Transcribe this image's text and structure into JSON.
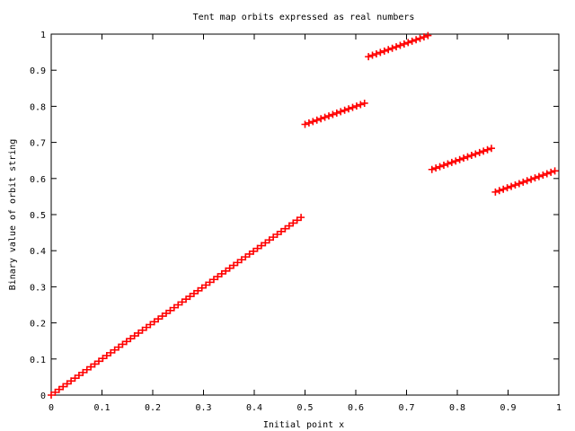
{
  "chart_data": {
    "type": "scatter",
    "title": "Tent map orbits expressed as real numbers",
    "xlabel": "Initial point x",
    "ylabel": "Binary value of orbit string",
    "xlim": [
      0,
      1
    ],
    "ylim": [
      0,
      1
    ],
    "xticks": [
      0,
      0.1,
      0.2,
      0.3,
      0.4,
      0.5,
      0.6,
      0.7,
      0.8,
      0.9,
      1
    ],
    "yticks": [
      0,
      0.1,
      0.2,
      0.3,
      0.4,
      0.5,
      0.6,
      0.7,
      0.8,
      0.9,
      1
    ],
    "xtick_labels": [
      "0",
      "0.1",
      "0.2",
      "0.3",
      "0.4",
      "0.5",
      "0.6",
      "0.7",
      "0.8",
      "0.9",
      "1"
    ],
    "ytick_labels": [
      "0",
      "0.1",
      "0.2",
      "0.3",
      "0.4",
      "0.5",
      "0.6",
      "0.7",
      "0.8",
      "0.9",
      "1"
    ],
    "grid": false,
    "legend": "none",
    "marker": "plus",
    "marker_color": "#ff0000",
    "series": [
      {
        "points": [
          [
            0.0,
            0.0
          ],
          [
            0.0078,
            0.0078
          ],
          [
            0.0156,
            0.0156
          ],
          [
            0.0234,
            0.0234
          ],
          [
            0.0313,
            0.0313
          ],
          [
            0.0391,
            0.0391
          ],
          [
            0.0469,
            0.0469
          ],
          [
            0.0547,
            0.0547
          ],
          [
            0.0625,
            0.0625
          ],
          [
            0.0703,
            0.0703
          ],
          [
            0.0781,
            0.0781
          ],
          [
            0.0859,
            0.0859
          ],
          [
            0.0938,
            0.0938
          ],
          [
            0.1016,
            0.1016
          ],
          [
            0.1094,
            0.1094
          ],
          [
            0.1172,
            0.1172
          ],
          [
            0.125,
            0.125
          ],
          [
            0.1328,
            0.1328
          ],
          [
            0.1406,
            0.1406
          ],
          [
            0.1484,
            0.1484
          ],
          [
            0.1563,
            0.1563
          ],
          [
            0.1641,
            0.1641
          ],
          [
            0.1719,
            0.1719
          ],
          [
            0.1797,
            0.1797
          ],
          [
            0.1875,
            0.1875
          ],
          [
            0.1953,
            0.1953
          ],
          [
            0.2031,
            0.2031
          ],
          [
            0.2109,
            0.2109
          ],
          [
            0.2188,
            0.2188
          ],
          [
            0.2266,
            0.2266
          ],
          [
            0.2344,
            0.2344
          ],
          [
            0.2422,
            0.2422
          ],
          [
            0.25,
            0.25
          ],
          [
            0.2578,
            0.2578
          ],
          [
            0.2656,
            0.2656
          ],
          [
            0.2734,
            0.2734
          ],
          [
            0.2813,
            0.2813
          ],
          [
            0.2891,
            0.2891
          ],
          [
            0.2969,
            0.2969
          ],
          [
            0.3047,
            0.3047
          ],
          [
            0.3125,
            0.3125
          ],
          [
            0.3203,
            0.3203
          ],
          [
            0.3281,
            0.3281
          ],
          [
            0.3359,
            0.3359
          ],
          [
            0.3438,
            0.3438
          ],
          [
            0.3516,
            0.3516
          ],
          [
            0.3594,
            0.3594
          ],
          [
            0.3672,
            0.3672
          ],
          [
            0.375,
            0.375
          ],
          [
            0.3828,
            0.3828
          ],
          [
            0.3906,
            0.3906
          ],
          [
            0.3984,
            0.3984
          ],
          [
            0.4063,
            0.4063
          ],
          [
            0.4141,
            0.4141
          ],
          [
            0.4219,
            0.4219
          ],
          [
            0.4297,
            0.4297
          ],
          [
            0.4375,
            0.4375
          ],
          [
            0.4453,
            0.4453
          ],
          [
            0.4531,
            0.4531
          ],
          [
            0.4609,
            0.4609
          ],
          [
            0.4688,
            0.4688
          ],
          [
            0.4766,
            0.4766
          ],
          [
            0.4844,
            0.4844
          ],
          [
            0.4922,
            0.4922
          ],
          [
            0.5,
            0.75
          ],
          [
            0.5078,
            0.7539
          ],
          [
            0.5156,
            0.7578
          ],
          [
            0.5234,
            0.7617
          ],
          [
            0.5313,
            0.7656
          ],
          [
            0.5391,
            0.7695
          ],
          [
            0.5469,
            0.7734
          ],
          [
            0.5547,
            0.7773
          ],
          [
            0.5625,
            0.7813
          ],
          [
            0.5703,
            0.7852
          ],
          [
            0.5781,
            0.7891
          ],
          [
            0.5859,
            0.793
          ],
          [
            0.5938,
            0.7969
          ],
          [
            0.6016,
            0.8008
          ],
          [
            0.6094,
            0.8047
          ],
          [
            0.6172,
            0.8086
          ],
          [
            0.625,
            0.9375
          ],
          [
            0.6328,
            0.9414
          ],
          [
            0.6406,
            0.9453
          ],
          [
            0.6484,
            0.9492
          ],
          [
            0.6563,
            0.9531
          ],
          [
            0.6641,
            0.957
          ],
          [
            0.6719,
            0.9609
          ],
          [
            0.6797,
            0.9648
          ],
          [
            0.6875,
            0.9688
          ],
          [
            0.6953,
            0.9727
          ],
          [
            0.7031,
            0.9766
          ],
          [
            0.7109,
            0.9805
          ],
          [
            0.7188,
            0.9844
          ],
          [
            0.7266,
            0.9883
          ],
          [
            0.7344,
            0.9922
          ],
          [
            0.7422,
            0.9961
          ],
          [
            0.75,
            0.625
          ],
          [
            0.7578,
            0.6289
          ],
          [
            0.7656,
            0.6328
          ],
          [
            0.7734,
            0.6367
          ],
          [
            0.7813,
            0.6406
          ],
          [
            0.7891,
            0.6445
          ],
          [
            0.7969,
            0.6484
          ],
          [
            0.8047,
            0.6523
          ],
          [
            0.8125,
            0.6563
          ],
          [
            0.8203,
            0.6602
          ],
          [
            0.8281,
            0.6641
          ],
          [
            0.8359,
            0.668
          ],
          [
            0.8438,
            0.6719
          ],
          [
            0.8516,
            0.6758
          ],
          [
            0.8594,
            0.6797
          ],
          [
            0.8672,
            0.6836
          ],
          [
            0.875,
            0.5625
          ],
          [
            0.8828,
            0.5664
          ],
          [
            0.8906,
            0.5703
          ],
          [
            0.8984,
            0.5742
          ],
          [
            0.9063,
            0.5781
          ],
          [
            0.9141,
            0.582
          ],
          [
            0.9219,
            0.5859
          ],
          [
            0.9297,
            0.5898
          ],
          [
            0.9375,
            0.5938
          ],
          [
            0.9453,
            0.5977
          ],
          [
            0.9531,
            0.6016
          ],
          [
            0.9609,
            0.6055
          ],
          [
            0.9688,
            0.6094
          ],
          [
            0.9766,
            0.6133
          ],
          [
            0.9844,
            0.6172
          ],
          [
            0.9922,
            0.6211
          ]
        ]
      }
    ]
  }
}
